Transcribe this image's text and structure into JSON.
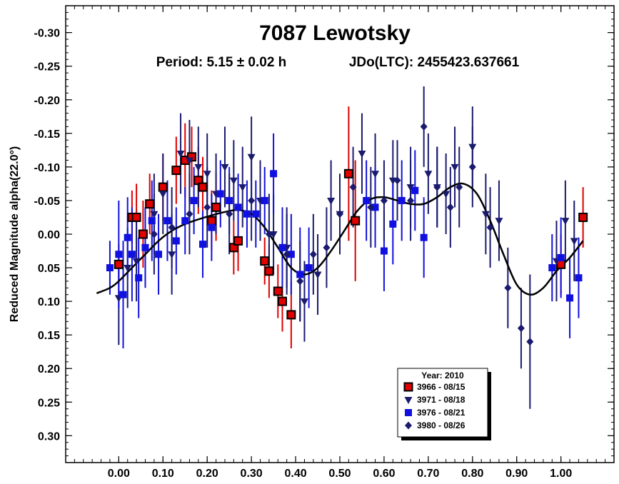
{
  "chart_data": {
    "type": "scatter",
    "title": "7087 Lewotsky",
    "subtitle_period": "Period: 5.15 ± 0.02 h",
    "subtitle_epoch": "JDo(LTC): 2455423.637661",
    "xlabel": "",
    "ylabel": "Reduced Magnitude alpha(22.0°)",
    "xlim": [
      -0.12,
      1.12
    ],
    "ylim": [
      0.34,
      -0.34
    ],
    "y_inverted": true,
    "x_ticks": [
      "0.00",
      "0.10",
      "0.20",
      "0.30",
      "0.40",
      "0.50",
      "0.60",
      "0.70",
      "0.80",
      "0.90",
      "1.00"
    ],
    "y_ticks": [
      "-0.30",
      "-0.25",
      "-0.20",
      "-0.15",
      "-0.10",
      "-0.05",
      "0.00",
      "0.05",
      "0.10",
      "0.15",
      "0.20",
      "0.25",
      "0.30"
    ],
    "grid": false,
    "legend": {
      "title": "Year: 2010",
      "placement": "bottom-center",
      "entries": [
        "3966 - 08/15",
        "3971 - 08/18",
        "3976 - 08/21",
        "3980 - 08/26"
      ]
    },
    "colors": {
      "s3966": "#e00000",
      "s3971": "#1a1a6e",
      "s3976": "#1010e0",
      "s3980": "#1a1a6e",
      "fit": "#000000"
    },
    "fit_curve": {
      "x": [
        -0.05,
        -0.02,
        0.0,
        0.03,
        0.06,
        0.09,
        0.12,
        0.15,
        0.18,
        0.21,
        0.24,
        0.27,
        0.3,
        0.33,
        0.36,
        0.39,
        0.42,
        0.45,
        0.48,
        0.51,
        0.54,
        0.57,
        0.6,
        0.63,
        0.66,
        0.69,
        0.72,
        0.75,
        0.78,
        0.81,
        0.84,
        0.87,
        0.9,
        0.93,
        0.96,
        0.99,
        1.02,
        1.05
      ],
      "y": [
        0.088,
        0.08,
        0.07,
        0.05,
        0.03,
        0.01,
        -0.005,
        -0.015,
        -0.022,
        -0.028,
        -0.033,
        -0.036,
        -0.03,
        -0.01,
        0.02,
        0.05,
        0.06,
        0.05,
        0.025,
        -0.005,
        -0.035,
        -0.052,
        -0.055,
        -0.05,
        -0.045,
        -0.045,
        -0.055,
        -0.07,
        -0.075,
        -0.06,
        -0.02,
        0.03,
        0.075,
        0.09,
        0.08,
        0.055,
        0.035,
        0.01
      ]
    },
    "series": [
      {
        "name": "3966 - 08/15",
        "marker": "square-red",
        "x": [
          0.0,
          0.03,
          0.04,
          0.055,
          0.07,
          0.1,
          0.13,
          0.15,
          0.165,
          0.18,
          0.19,
          0.21,
          0.22,
          0.26,
          0.27,
          0.33,
          0.34,
          0.36,
          0.37,
          0.39,
          0.52,
          0.535,
          1.0,
          1.05
        ],
        "y": [
          0.045,
          -0.025,
          -0.025,
          0.0,
          -0.045,
          -0.07,
          -0.095,
          -0.11,
          -0.115,
          -0.08,
          -0.07,
          -0.02,
          -0.04,
          0.02,
          0.01,
          0.04,
          0.055,
          0.085,
          0.1,
          0.12,
          -0.09,
          -0.02,
          0.045,
          -0.025
        ],
        "err": [
          0.03,
          0.04,
          0.05,
          0.05,
          0.045,
          0.05,
          0.05,
          0.055,
          0.045,
          0.05,
          0.045,
          0.045,
          0.05,
          0.04,
          0.045,
          0.035,
          0.04,
          0.04,
          0.045,
          0.05,
          0.1,
          0.09,
          0.045,
          0.045
        ]
      },
      {
        "name": "3971 - 08/18",
        "marker": "triangle-down",
        "x": [
          0.0,
          0.02,
          0.04,
          0.06,
          0.08,
          0.1,
          0.12,
          0.14,
          0.16,
          0.18,
          0.2,
          0.22,
          0.24,
          0.26,
          0.28,
          0.3,
          0.32,
          0.35,
          0.38,
          0.42,
          0.45,
          0.48,
          0.5,
          0.55,
          0.58,
          0.62,
          0.66,
          0.7,
          0.72,
          0.74,
          0.76,
          0.8,
          0.83,
          0.86,
          0.99,
          1.01,
          1.03
        ],
        "y": [
          0.095,
          0.05,
          0.04,
          0.02,
          -0.03,
          -0.06,
          0.03,
          -0.12,
          -0.11,
          -0.1,
          -0.09,
          -0.06,
          -0.1,
          -0.08,
          -0.07,
          -0.115,
          -0.05,
          0.0,
          0.02,
          0.1,
          0.06,
          -0.05,
          -0.03,
          -0.12,
          -0.09,
          -0.08,
          -0.07,
          -0.09,
          -0.07,
          -0.06,
          -0.1,
          -0.13,
          -0.03,
          -0.02,
          0.04,
          -0.02,
          0.01
        ],
        "err": [
          0.07,
          0.06,
          0.06,
          0.05,
          0.06,
          0.06,
          0.06,
          0.06,
          0.06,
          0.06,
          0.06,
          0.06,
          0.06,
          0.06,
          0.06,
          0.06,
          0.06,
          0.06,
          0.06,
          0.06,
          0.06,
          0.06,
          0.06,
          0.06,
          0.06,
          0.06,
          0.06,
          0.06,
          0.06,
          0.06,
          0.06,
          0.06,
          0.06,
          0.06,
          0.06,
          0.06,
          0.06
        ]
      },
      {
        "name": "3976 - 08/21",
        "marker": "square-blue",
        "x": [
          -0.02,
          0.0,
          0.01,
          0.02,
          0.03,
          0.045,
          0.06,
          0.075,
          0.09,
          0.11,
          0.13,
          0.15,
          0.17,
          0.19,
          0.21,
          0.23,
          0.25,
          0.27,
          0.29,
          0.31,
          0.33,
          0.35,
          0.37,
          0.39,
          0.41,
          0.43,
          0.56,
          0.58,
          0.6,
          0.62,
          0.64,
          0.67,
          0.69,
          0.98,
          1.0,
          1.02,
          1.04
        ],
        "y": [
          0.05,
          0.03,
          0.09,
          0.005,
          0.03,
          0.065,
          0.02,
          -0.02,
          0.03,
          -0.02,
          0.01,
          -0.02,
          -0.05,
          0.015,
          -0.01,
          -0.06,
          -0.05,
          -0.04,
          -0.03,
          -0.03,
          -0.05,
          -0.09,
          0.02,
          0.03,
          0.06,
          0.05,
          -0.05,
          -0.04,
          0.025,
          -0.015,
          -0.05,
          -0.065,
          0.005,
          0.05,
          0.035,
          0.095,
          0.065
        ],
        "err": [
          0.04,
          0.08,
          0.08,
          0.06,
          0.07,
          0.06,
          0.06,
          0.06,
          0.06,
          0.06,
          0.05,
          0.05,
          0.05,
          0.05,
          0.05,
          0.05,
          0.05,
          0.05,
          0.05,
          0.05,
          0.05,
          0.06,
          0.06,
          0.06,
          0.07,
          0.06,
          0.06,
          0.06,
          0.06,
          0.06,
          0.06,
          0.06,
          0.06,
          0.05,
          0.06,
          0.06,
          0.06
        ]
      },
      {
        "name": "3980 - 08/26",
        "marker": "diamond",
        "x": [
          0.08,
          0.12,
          0.16,
          0.2,
          0.25,
          0.3,
          0.34,
          0.38,
          0.41,
          0.44,
          0.47,
          0.5,
          0.53,
          0.57,
          0.6,
          0.63,
          0.66,
          0.69,
          0.72,
          0.75,
          0.77,
          0.8,
          0.84,
          0.88,
          0.91,
          0.93
        ],
        "y": [
          0.0,
          -0.01,
          -0.03,
          -0.04,
          -0.03,
          -0.05,
          0.0,
          0.03,
          0.07,
          0.03,
          0.02,
          -0.03,
          -0.07,
          -0.04,
          -0.05,
          -0.08,
          -0.05,
          -0.16,
          -0.07,
          -0.04,
          -0.07,
          -0.1,
          -0.01,
          0.08,
          0.14,
          0.16
        ],
        "err": [
          0.06,
          0.06,
          0.06,
          0.06,
          0.06,
          0.06,
          0.06,
          0.06,
          0.06,
          0.06,
          0.06,
          0.06,
          0.06,
          0.06,
          0.06,
          0.06,
          0.06,
          0.06,
          0.06,
          0.06,
          0.06,
          0.06,
          0.06,
          0.06,
          0.06,
          0.1
        ]
      }
    ]
  }
}
